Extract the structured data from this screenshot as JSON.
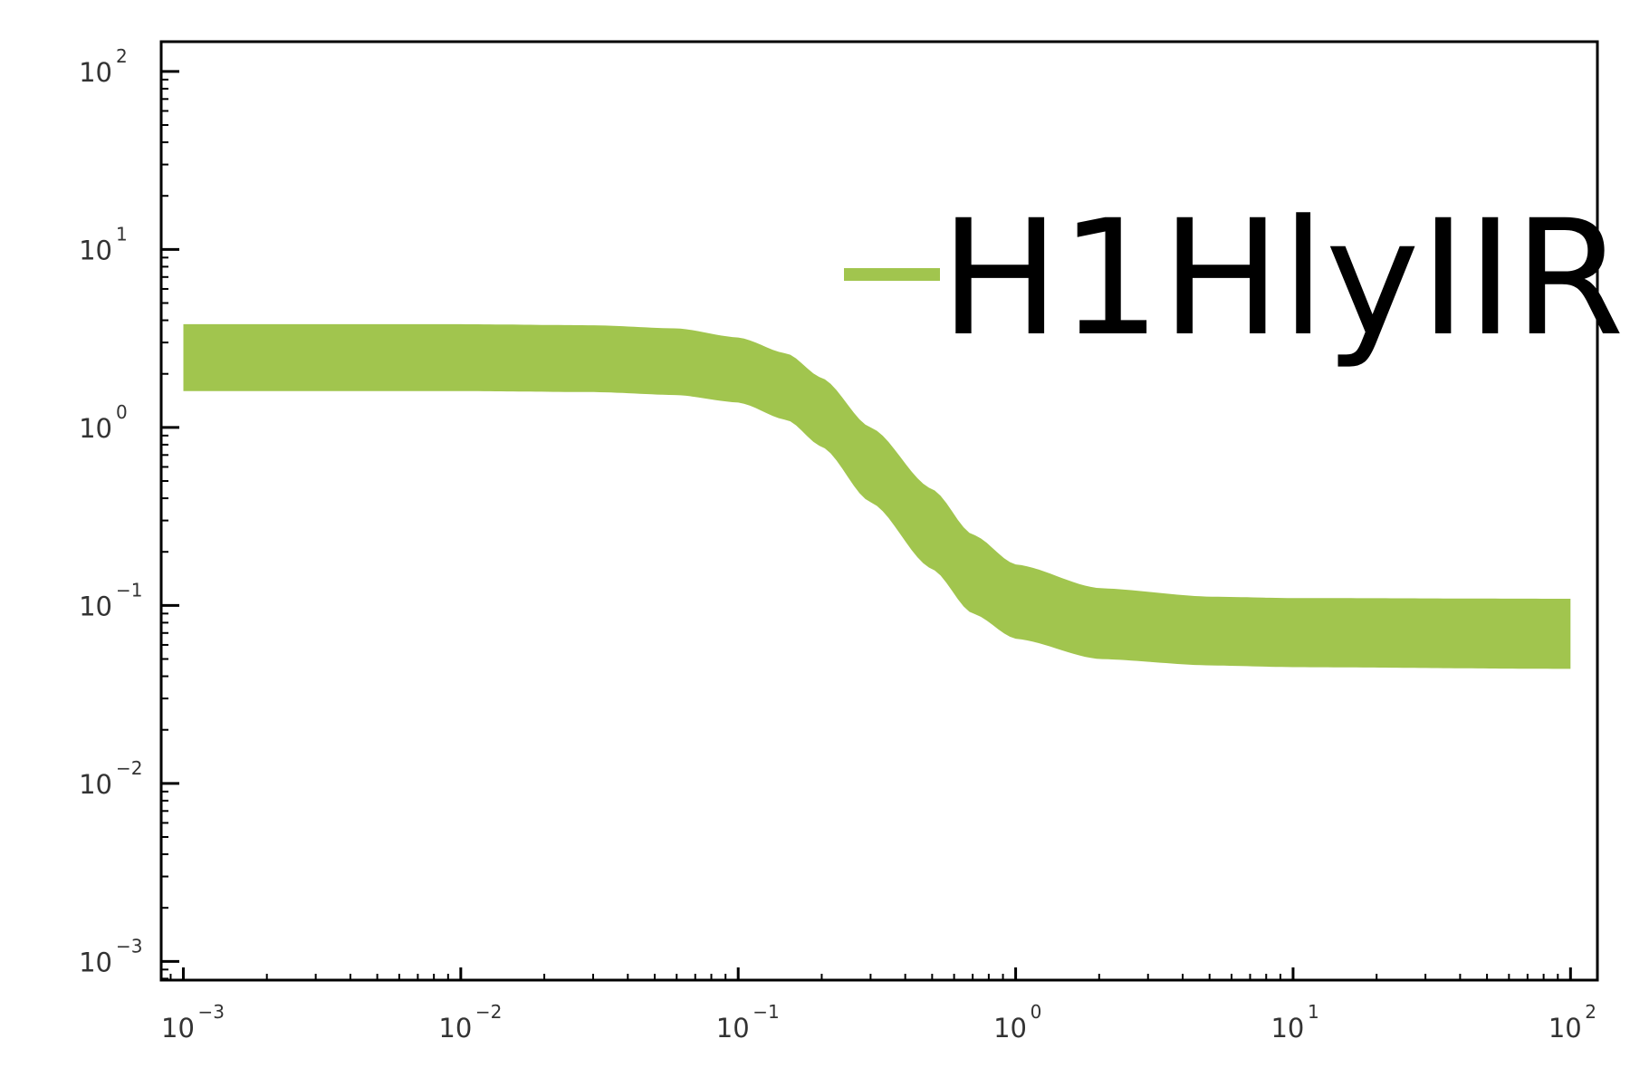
{
  "chart_data": {
    "type": "area",
    "x_scale": "log",
    "y_scale": "log",
    "xlim": [
      0.000832,
      125
    ],
    "ylim": [
      0.000785,
      147
    ],
    "x_tick_values": [
      0.001,
      0.01,
      0.1,
      1,
      10,
      100
    ],
    "y_tick_values": [
      0.001,
      0.01,
      0.1,
      1,
      10,
      100
    ],
    "x_tick_labels": [
      {
        "base": "10",
        "exp": "−3"
      },
      {
        "base": "10",
        "exp": "−2"
      },
      {
        "base": "10",
        "exp": "−1"
      },
      {
        "base": "10",
        "exp": "0"
      },
      {
        "base": "10",
        "exp": "1"
      },
      {
        "base": "10",
        "exp": "2"
      }
    ],
    "y_tick_labels": [
      {
        "base": "10",
        "exp": "−3"
      },
      {
        "base": "10",
        "exp": "−2"
      },
      {
        "base": "10",
        "exp": "−1"
      },
      {
        "base": "10",
        "exp": "0"
      },
      {
        "base": "10",
        "exp": "1"
      },
      {
        "base": "10",
        "exp": "2"
      }
    ],
    "grid": false,
    "legend_position": "top-right",
    "series": [
      {
        "name": "H1HlyIIR",
        "color": "#a1c54e",
        "x": [
          0.001,
          0.01,
          0.03,
          0.06,
          0.1,
          0.15,
          0.2,
          0.3,
          0.5,
          0.7,
          1,
          2,
          5,
          10,
          100
        ],
        "upper": [
          3.8,
          3.8,
          3.75,
          3.6,
          3.2,
          2.6,
          1.9,
          1.0,
          0.45,
          0.25,
          0.17,
          0.125,
          0.112,
          0.11,
          0.109
        ],
        "lower": [
          1.6,
          1.6,
          1.58,
          1.52,
          1.38,
          1.1,
          0.78,
          0.38,
          0.16,
          0.09,
          0.065,
          0.05,
          0.046,
          0.045,
          0.044
        ]
      }
    ]
  }
}
